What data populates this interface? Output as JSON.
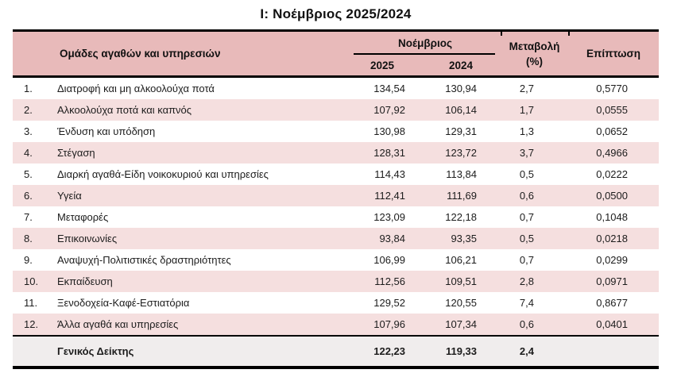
{
  "title": "Ι: Νοέμβριος 2025/2024",
  "colors": {
    "header_pink": "#e8baba",
    "row_stripe_pink": "#f5dfdf",
    "total_row_gray": "#f0eded",
    "border_black": "#000000"
  },
  "table": {
    "header": {
      "groups_label": "Ομάδες αγαθών και υπηρεσιών",
      "month_group_label": "Νοέμβριος",
      "col_2025": "2025",
      "col_2024": "2024",
      "change_label": "Μεταβολή",
      "change_unit": "(%)",
      "impact_label": "Επίπτωση"
    },
    "rows": [
      {
        "num": "1.",
        "category": "Διατροφή και μη αλκοολούχα ποτά",
        "v2025": "134,54",
        "v2024": "130,94",
        "change": "2,7",
        "impact": "0,5770"
      },
      {
        "num": "2.",
        "category": "Αλκοολούχα ποτά και καπνός",
        "v2025": "107,92",
        "v2024": "106,14",
        "change": "1,7",
        "impact": "0,0555"
      },
      {
        "num": "3.",
        "category": "Ένδυση και υπόδηση",
        "v2025": "130,98",
        "v2024": "129,31",
        "change": "1,3",
        "impact": "0,0652"
      },
      {
        "num": "4.",
        "category": "Στέγαση",
        "v2025": "128,31",
        "v2024": "123,72",
        "change": "3,7",
        "impact": "0,4966"
      },
      {
        "num": "5.",
        "category": "Διαρκή αγαθά-Είδη νοικοκυριού και υπηρεσίες",
        "v2025": "114,43",
        "v2024": "113,84",
        "change": "0,5",
        "impact": "0,0222"
      },
      {
        "num": "6.",
        "category": "Υγεία",
        "v2025": "112,41",
        "v2024": "111,69",
        "change": "0,6",
        "impact": "0,0500"
      },
      {
        "num": "7.",
        "category": "Μεταφορές",
        "v2025": "123,09",
        "v2024": "122,18",
        "change": "0,7",
        "impact": "0,1048"
      },
      {
        "num": "8.",
        "category": "Επικοινωνίες",
        "v2025": "93,84",
        "v2024": "93,35",
        "change": "0,5",
        "impact": "0,0218"
      },
      {
        "num": "9.",
        "category": "Αναψυχή-Πολιτιστικές δραστηριότητες",
        "v2025": "106,99",
        "v2024": "106,21",
        "change": "0,7",
        "impact": "0,0299"
      },
      {
        "num": "10.",
        "category": "Εκπαίδευση",
        "v2025": "112,56",
        "v2024": "109,51",
        "change": "2,8",
        "impact": "0,0971"
      },
      {
        "num": "11.",
        "category": "Ξενοδοχεία-Καφέ-Εστιατόρια",
        "v2025": "129,52",
        "v2024": "120,55",
        "change": "7,4",
        "impact": "0,8677"
      },
      {
        "num": "12.",
        "category": "Άλλα αγαθά και υπηρεσίες",
        "v2025": "107,96",
        "v2024": "107,34",
        "change": "0,6",
        "impact": "0,0401"
      }
    ],
    "total_row": {
      "label": "Γενικός Δείκτης",
      "v2025": "122,23",
      "v2024": "119,33",
      "change": "2,4",
      "impact": ""
    }
  }
}
